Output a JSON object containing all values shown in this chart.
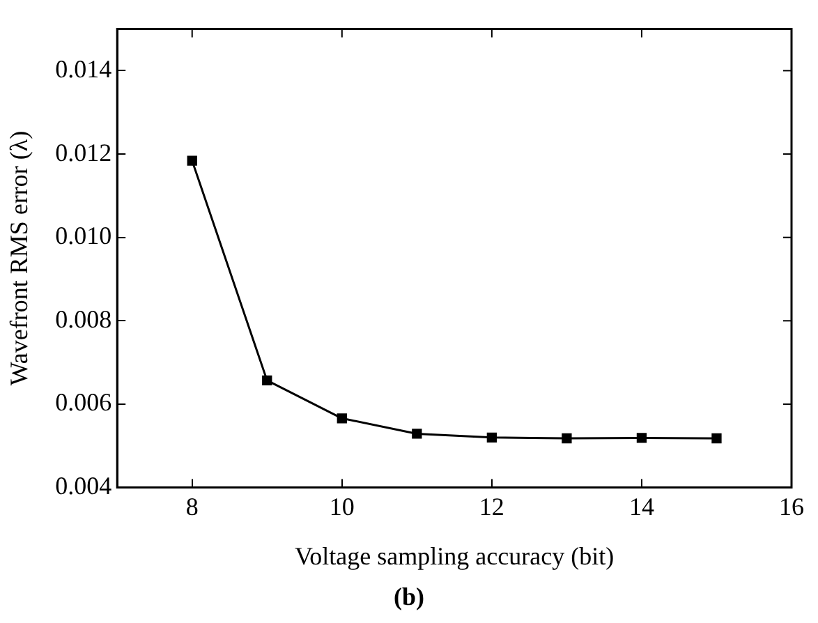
{
  "chart_data": {
    "type": "line",
    "xlabel": "Voltage sampling accuracy (bit)",
    "ylabel": "Wavefront RMS error (λ)",
    "annotations": [
      "(b)"
    ],
    "x": [
      8,
      9,
      10,
      11,
      12,
      13,
      14,
      15
    ],
    "series": [
      {
        "color": "#000000",
        "values": [
          0.01184,
          0.00657,
          0.00566,
          0.00529,
          0.0052,
          0.00518,
          0.00519,
          0.00518
        ]
      }
    ],
    "xlim": [
      7,
      16
    ],
    "xticks": [
      8,
      10,
      12,
      14,
      16
    ],
    "ylim": [
      0.004,
      0.015
    ],
    "yticks": [
      0.004,
      0.006,
      0.008,
      {
        "value": 0.01,
        "label": "0.010"
      },
      0.012,
      0.014
    ],
    "marker": "square",
    "line_style": "solid",
    "grid": false,
    "legend": false
  }
}
